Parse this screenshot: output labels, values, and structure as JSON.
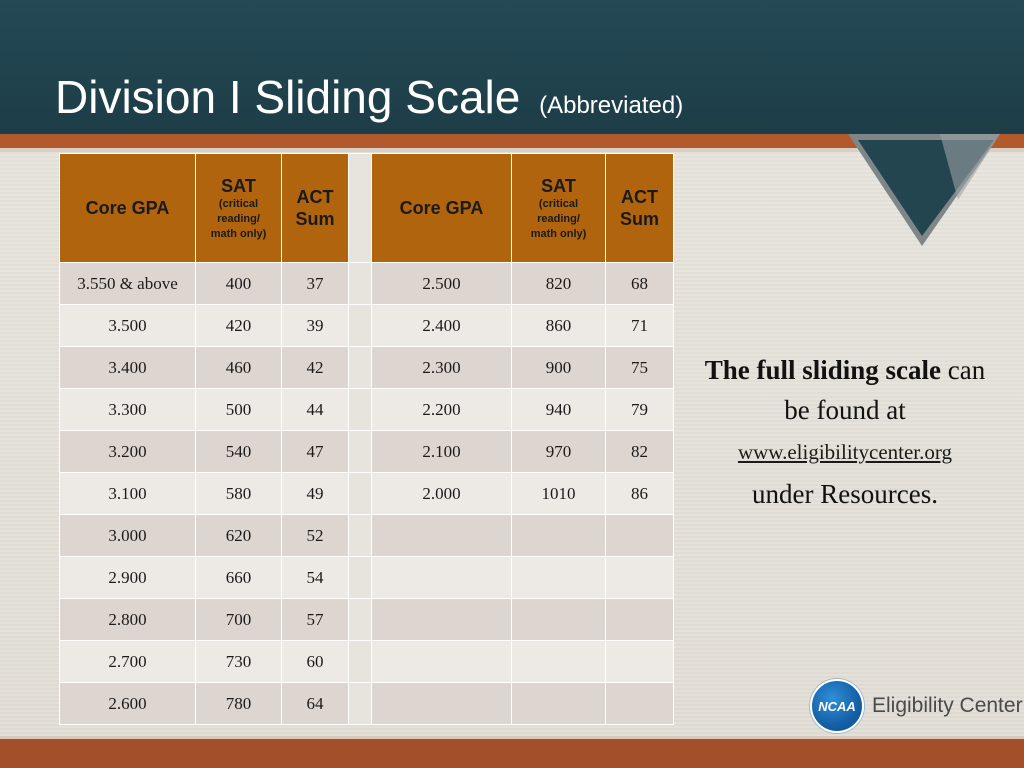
{
  "slide": {
    "title": "Division I Sliding Scale",
    "subtitle": "(Abbreviated)"
  },
  "table": {
    "headers": {
      "gpa": "Core GPA",
      "sat": "SAT",
      "sat_note_1": "(critical",
      "sat_note_2": "reading/",
      "sat_note_3": "math only)",
      "act_1": "ACT",
      "act_2": "Sum"
    },
    "rows": [
      {
        "gpa_a": "3.550 & above",
        "sat_a": "400",
        "act_a": "37",
        "gpa_b": "2.500",
        "sat_b": "820",
        "act_b": "68"
      },
      {
        "gpa_a": "3.500",
        "sat_a": "420",
        "act_a": "39",
        "gpa_b": "2.400",
        "sat_b": "860",
        "act_b": "71"
      },
      {
        "gpa_a": "3.400",
        "sat_a": "460",
        "act_a": "42",
        "gpa_b": "2.300",
        "sat_b": "900",
        "act_b": "75"
      },
      {
        "gpa_a": "3.300",
        "sat_a": "500",
        "act_a": "44",
        "gpa_b": "2.200",
        "sat_b": "940",
        "act_b": "79"
      },
      {
        "gpa_a": "3.200",
        "sat_a": "540",
        "act_a": "47",
        "gpa_b": "2.100",
        "sat_b": "970",
        "act_b": "82"
      },
      {
        "gpa_a": "3.100",
        "sat_a": "580",
        "act_a": "49",
        "gpa_b": "2.000",
        "sat_b": "1010",
        "act_b": "86"
      },
      {
        "gpa_a": "3.000",
        "sat_a": "620",
        "act_a": "52",
        "gpa_b": "",
        "sat_b": "",
        "act_b": ""
      },
      {
        "gpa_a": "2.900",
        "sat_a": "660",
        "act_a": "54",
        "gpa_b": "",
        "sat_b": "",
        "act_b": ""
      },
      {
        "gpa_a": "2.800",
        "sat_a": "700",
        "act_a": "57",
        "gpa_b": "",
        "sat_b": "",
        "act_b": ""
      },
      {
        "gpa_a": "2.700",
        "sat_a": "730",
        "act_a": "60",
        "gpa_b": "",
        "sat_b": "",
        "act_b": ""
      },
      {
        "gpa_a": "2.600",
        "sat_a": "780",
        "act_a": "64",
        "gpa_b": "",
        "sat_b": "",
        "act_b": ""
      }
    ]
  },
  "note": {
    "bold": "The full sliding scale",
    "rest": "can be found at",
    "link": "www.eligibilitycenter.org",
    "tail": "under Resources."
  },
  "logo": {
    "badge": "NCAA",
    "text": "Eligibility Center"
  },
  "colors": {
    "title_bar": "#244a56",
    "accent": "#b35a2c",
    "header_cell": "#b0640e",
    "logo_blue": "#1560a8"
  }
}
